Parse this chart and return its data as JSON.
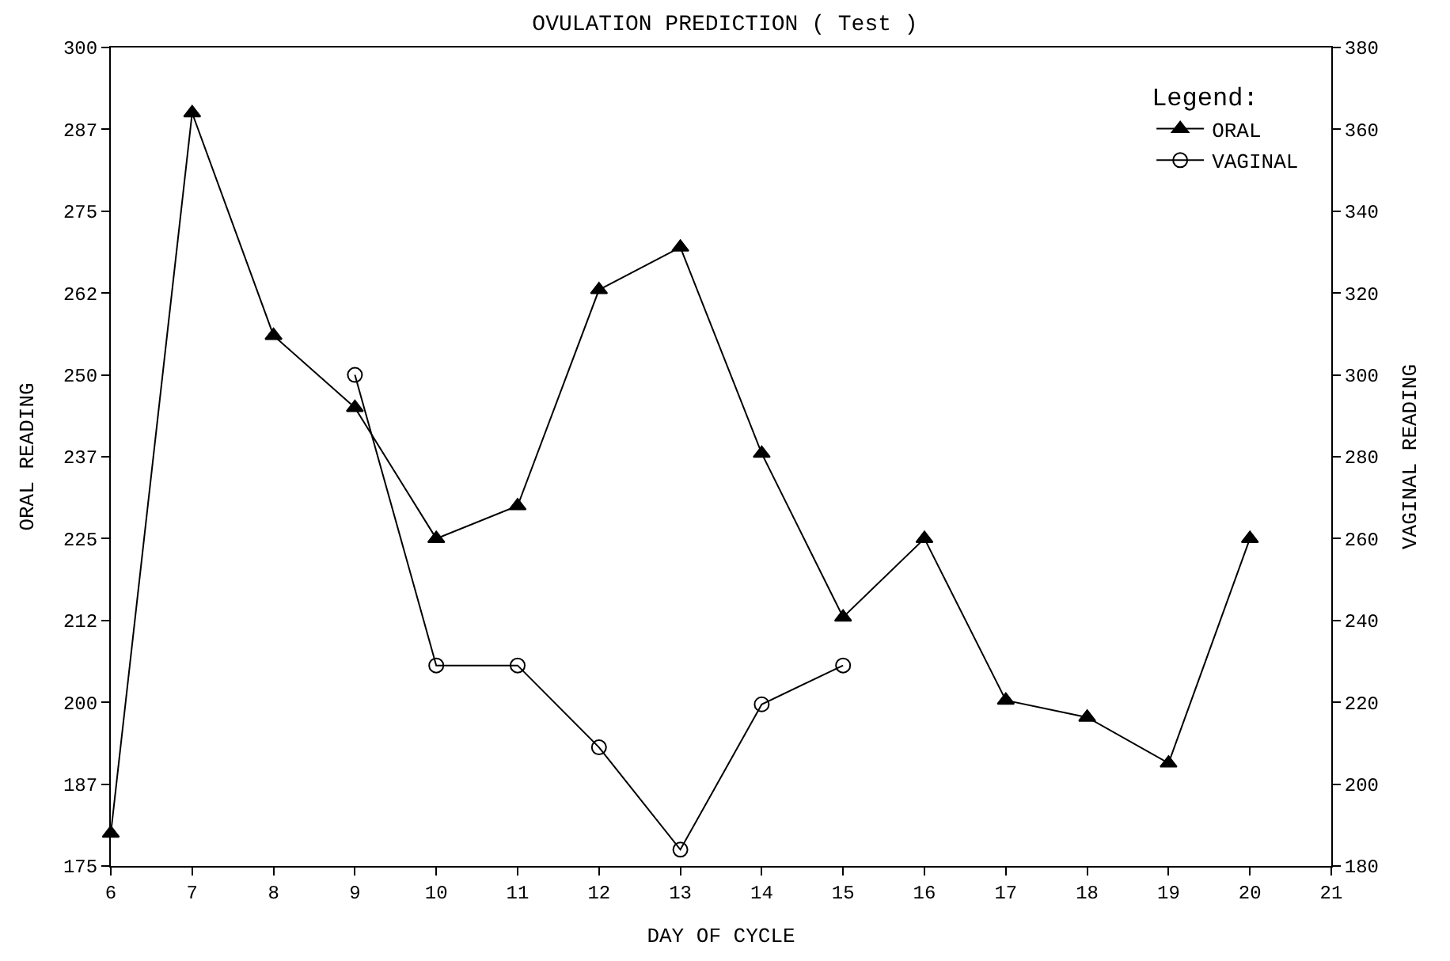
{
  "chart_data": {
    "type": "line",
    "title": "OVULATION PREDICTION ( Test )",
    "xlabel": "DAY OF CYCLE",
    "ylabel": "ORAL READING",
    "y2label": "VAGINAL READING",
    "legend_title": "Legend:",
    "x": [
      6,
      7,
      8,
      9,
      10,
      11,
      12,
      13,
      14,
      15,
      16,
      17,
      18,
      19,
      20
    ],
    "series": [
      {
        "name": "ORAL",
        "color": "#000000",
        "marker": "triangle",
        "values": [
          180,
          290,
          256,
          245,
          225,
          230,
          263,
          269.5,
          238,
          213,
          225,
          200.3,
          197.7,
          190.7,
          225
        ]
      },
      {
        "name": "VAGINAL",
        "color": "#000000",
        "marker": "circle",
        "axis": "y2",
        "x": [
          9,
          10,
          11,
          12,
          13,
          14,
          15
        ],
        "values": [
          300,
          229,
          229,
          209,
          184,
          219.5,
          229
        ]
      }
    ],
    "xlim": [
      6,
      21
    ],
    "xticks": [
      6,
      7,
      8,
      9,
      10,
      11,
      12,
      13,
      14,
      15,
      16,
      17,
      18,
      19,
      20,
      21
    ],
    "ylim": [
      175,
      300
    ],
    "yticks": [
      175,
      {
        "value": 187.5,
        "label": "187"
      },
      200,
      {
        "value": 212.5,
        "label": "212"
      },
      225,
      {
        "value": 237.5,
        "label": "237"
      },
      250,
      {
        "value": 262.5,
        "label": "262"
      },
      275,
      {
        "value": 287.5,
        "label": "287"
      },
      300
    ],
    "y2lim": [
      180,
      380
    ],
    "y2ticks": [
      180,
      200,
      220,
      240,
      260,
      280,
      300,
      320,
      340,
      360,
      380
    ],
    "legend": "top right",
    "line_style": "solid"
  }
}
